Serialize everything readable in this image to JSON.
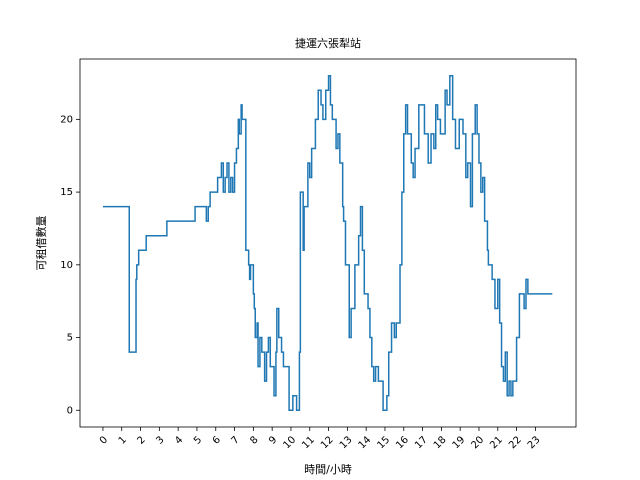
{
  "chart_data": {
    "type": "line",
    "step": "post",
    "title": "捷運六張犁站",
    "x_label": "時間/小時",
    "y_label": "可租借數量",
    "xlim": [
      -1.22,
      25.16
    ],
    "ylim": [
      -1.15,
      24.15
    ],
    "xticks": [
      0,
      1,
      2,
      3,
      4,
      5,
      6,
      7,
      8,
      9,
      10,
      11,
      12,
      13,
      14,
      15,
      16,
      17,
      18,
      19,
      20,
      21,
      22,
      23
    ],
    "yticks": [
      0,
      5,
      10,
      15,
      20
    ],
    "series": [
      {
        "color": "#1f77b4",
        "x": [
          0,
          1.4,
          1.76,
          1.8,
          1.9,
          2.3,
          3.4,
          4.9,
          5.5,
          5.6,
          5.7,
          6.1,
          6.3,
          6.4,
          6.5,
          6.6,
          6.7,
          6.8,
          6.9,
          7.0,
          7.1,
          7.2,
          7.25,
          7.35,
          7.4,
          7.6,
          7.75,
          7.8,
          7.85,
          8.0,
          8.05,
          8.1,
          8.2,
          8.25,
          8.35,
          8.45,
          8.6,
          8.7,
          8.8,
          8.9,
          9.1,
          9.2,
          9.25,
          9.35,
          9.5,
          9.6,
          9.9,
          10.1,
          10.3,
          10.45,
          10.5,
          10.65,
          10.7,
          10.9,
          11.0,
          11.1,
          11.3,
          11.45,
          11.6,
          11.7,
          11.85,
          12.0,
          12.1,
          12.2,
          12.4,
          12.5,
          12.6,
          12.75,
          12.8,
          12.9,
          13.1,
          13.2,
          13.4,
          13.6,
          13.7,
          13.8,
          13.9,
          14.1,
          14.2,
          14.3,
          14.4,
          14.5,
          14.65,
          14.9,
          15.1,
          15.2,
          15.35,
          15.5,
          15.6,
          15.8,
          15.9,
          16.0,
          16.1,
          16.2,
          16.4,
          16.5,
          16.6,
          16.8,
          17.1,
          17.3,
          17.45,
          17.6,
          17.7,
          17.8,
          17.95,
          18.2,
          18.3,
          18.45,
          18.6,
          18.75,
          18.95,
          19.15,
          19.3,
          19.4,
          19.55,
          19.65,
          19.8,
          19.9,
          20.0,
          20.1,
          20.2,
          20.3,
          20.45,
          20.5,
          20.7,
          20.85,
          21.0,
          21.1,
          21.2,
          21.3,
          21.4,
          21.5,
          21.6,
          21.7,
          21.8,
          22.0,
          22.15,
          22.4,
          22.5,
          22.6,
          22.8,
          23.9
        ],
        "values": [
          14,
          4,
          9,
          10,
          11,
          12,
          13,
          14,
          13,
          14,
          15,
          16,
          17,
          15,
          16,
          17,
          15,
          16,
          15,
          17,
          18,
          20,
          19,
          21,
          20,
          11,
          10,
          9,
          10,
          8,
          7,
          5,
          6,
          3,
          5,
          4,
          2,
          4,
          5,
          3,
          1,
          4,
          7,
          5,
          4,
          3,
          0,
          1,
          0,
          4,
          15,
          11,
          14,
          17,
          16,
          18,
          20,
          22,
          21,
          20,
          22,
          23,
          21,
          20,
          18,
          19,
          17,
          14,
          13,
          10,
          5,
          7,
          10,
          12,
          14,
          11,
          8,
          7,
          5,
          3,
          2,
          3,
          2,
          0,
          1,
          4,
          6,
          5,
          6,
          10,
          15,
          19,
          21,
          19,
          17,
          16,
          18,
          21,
          19,
          17,
          19,
          18,
          21,
          20,
          19,
          22,
          21,
          23,
          20,
          18,
          20,
          19,
          16,
          17,
          14,
          19,
          21,
          19,
          17,
          15,
          16,
          13,
          11,
          10,
          9,
          7,
          9,
          6,
          3,
          2,
          4,
          1,
          2,
          1,
          2,
          5,
          8,
          7,
          9,
          8,
          8,
          8
        ]
      }
    ]
  }
}
